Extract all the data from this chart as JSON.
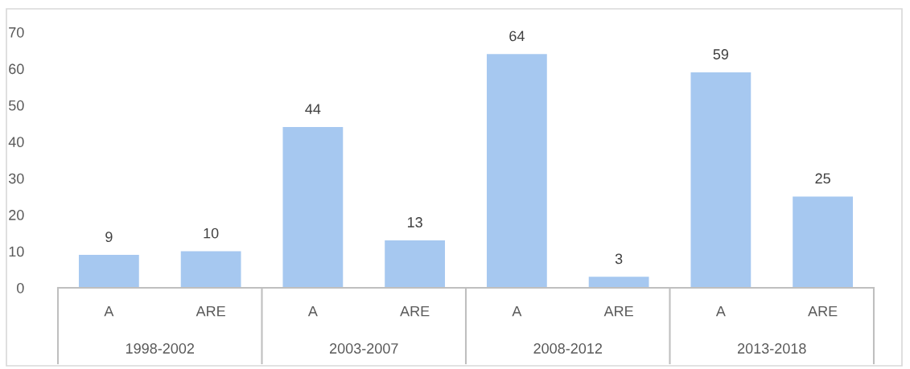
{
  "chart_data": {
    "type": "bar",
    "categories": [
      "A",
      "ARE",
      "A",
      "ARE",
      "A",
      "ARE",
      "A",
      "ARE"
    ],
    "values": [
      9,
      10,
      44,
      13,
      64,
      3,
      59,
      25
    ],
    "color": "#a6c8f0",
    "ylim": [
      0,
      70
    ],
    "yticks": [
      0,
      10,
      20,
      30,
      40,
      50,
      60,
      70
    ],
    "data_labels": true,
    "annotations": [
      "1998-2002",
      "2003-2007",
      "2008-2012",
      "2013-2018"
    ]
  }
}
